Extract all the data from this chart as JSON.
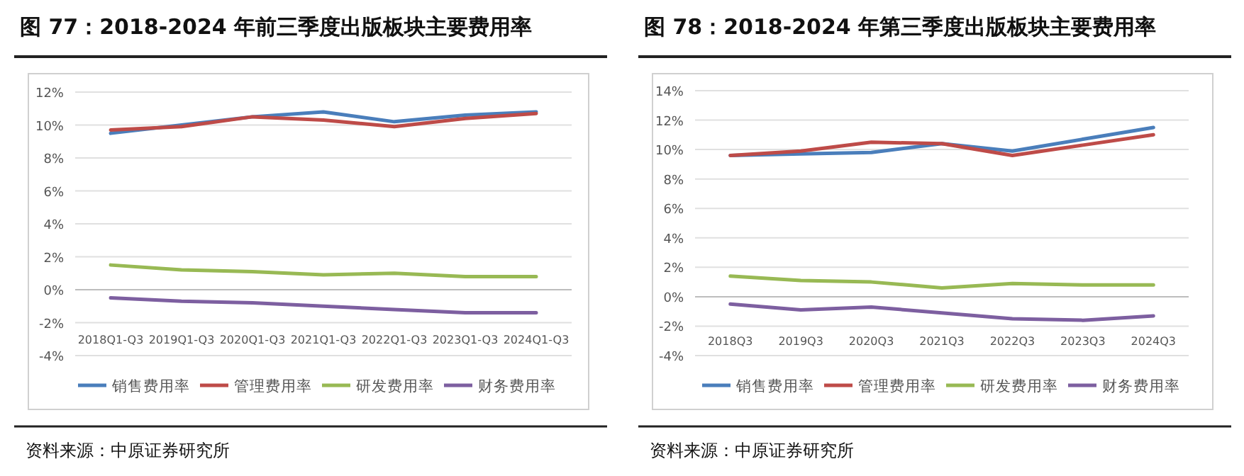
{
  "chart_data": [
    {
      "type": "line",
      "title": "图 77：2018-2024 年前三季度出版板块主要费用率",
      "categories": [
        "2018Q1-Q3",
        "2019Q1-Q3",
        "2020Q1-Q3",
        "2021Q1-Q3",
        "2022Q1-Q3",
        "2023Q1-Q3",
        "2024Q1-Q3"
      ],
      "series": [
        {
          "name": "销售费用率",
          "color": "#4a7ebb",
          "values": [
            9.5,
            10.0,
            10.5,
            10.8,
            10.2,
            10.6,
            10.8
          ]
        },
        {
          "name": "管理费用率",
          "color": "#be4b48",
          "values": [
            9.7,
            9.9,
            10.5,
            10.3,
            9.9,
            10.4,
            10.7
          ]
        },
        {
          "name": "研发费用率",
          "color": "#98b954",
          "values": [
            1.5,
            1.2,
            1.1,
            0.9,
            1.0,
            0.8,
            0.8
          ]
        },
        {
          "name": "财务费用率",
          "color": "#7d5fa0",
          "values": [
            -0.5,
            -0.7,
            -0.8,
            -1.0,
            -1.2,
            -1.4,
            -1.4
          ]
        }
      ],
      "ylim": [
        -4,
        12
      ],
      "yticks": [
        {
          "value": -4,
          "label": "-4%"
        },
        {
          "value": -2,
          "label": "-2%"
        },
        {
          "value": 0,
          "label": "0%"
        },
        {
          "value": 2,
          "label": "2%"
        },
        {
          "value": 4,
          "label": "4%"
        },
        {
          "value": 6,
          "label": "6%"
        },
        {
          "value": 8,
          "label": "8%"
        },
        {
          "value": 10,
          "label": "10%"
        },
        {
          "value": 12,
          "label": "12%"
        }
      ],
      "grid": "y",
      "legend": "bottom",
      "annotations": [
        "资料来源：中原证券研究所"
      ]
    },
    {
      "type": "line",
      "title": "图 78：2018-2024 年第三季度出版板块主要费用率",
      "categories": [
        "2018Q3",
        "2019Q3",
        "2020Q3",
        "2021Q3",
        "2022Q3",
        "2023Q3",
        "2024Q3"
      ],
      "series": [
        {
          "name": "销售费用率",
          "color": "#4a7ebb",
          "values": [
            9.6,
            9.7,
            9.8,
            10.4,
            9.9,
            10.7,
            11.5
          ]
        },
        {
          "name": "管理费用率",
          "color": "#be4b48",
          "values": [
            9.6,
            9.9,
            10.5,
            10.4,
            9.6,
            10.3,
            11.0
          ]
        },
        {
          "name": "研发费用率",
          "color": "#98b954",
          "values": [
            1.4,
            1.1,
            1.0,
            0.6,
            0.9,
            0.8,
            0.8
          ]
        },
        {
          "name": "财务费用率",
          "color": "#7d5fa0",
          "values": [
            -0.5,
            -0.9,
            -0.7,
            -1.1,
            -1.5,
            -1.6,
            -1.3
          ]
        }
      ],
      "ylim": [
        -4,
        14
      ],
      "yticks": [
        {
          "value": -4,
          "label": "-4%"
        },
        {
          "value": -2,
          "label": "-2%"
        },
        {
          "value": 0,
          "label": "0%"
        },
        {
          "value": 2,
          "label": "2%"
        },
        {
          "value": 4,
          "label": "4%"
        },
        {
          "value": 6,
          "label": "6%"
        },
        {
          "value": 8,
          "label": "8%"
        },
        {
          "value": 10,
          "label": "10%"
        },
        {
          "value": 12,
          "label": "12%"
        },
        {
          "value": 14,
          "label": "14%"
        }
      ],
      "grid": "y",
      "legend": "bottom",
      "annotations": [
        "资料来源：中原证券研究所"
      ]
    }
  ]
}
